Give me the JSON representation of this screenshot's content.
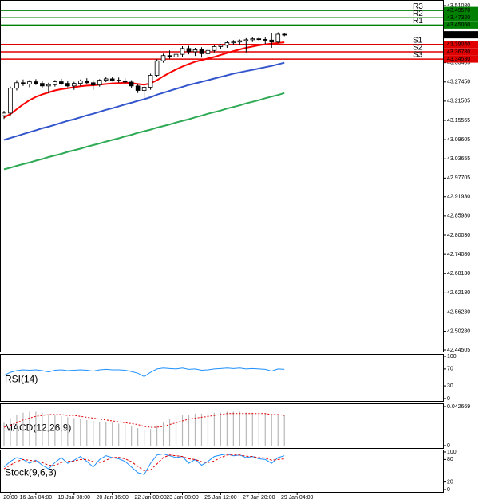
{
  "chart_data": [
    {
      "type": "candlestick",
      "open": [
        43.17,
        43.178,
        43.255,
        43.272,
        43.268,
        43.275,
        43.27,
        43.262,
        43.266,
        43.275,
        43.27,
        43.262,
        43.27,
        43.278,
        43.272,
        43.265,
        43.28,
        43.284,
        43.28,
        43.278,
        43.274,
        43.262,
        43.248,
        43.258,
        43.295,
        43.34,
        43.356,
        43.352,
        43.36,
        43.378,
        43.368,
        43.374,
        43.362,
        43.372,
        43.384,
        43.388,
        43.396,
        43.398,
        43.402,
        43.405,
        43.408,
        43.406,
        43.404,
        43.398,
        43.422
      ],
      "high": [
        43.185,
        43.26,
        43.28,
        43.282,
        43.28,
        43.283,
        43.278,
        43.272,
        43.28,
        43.284,
        43.278,
        43.275,
        43.282,
        43.286,
        43.28,
        43.283,
        43.29,
        43.29,
        43.288,
        43.286,
        43.28,
        43.268,
        43.262,
        43.3,
        43.345,
        43.362,
        43.372,
        43.366,
        43.385,
        43.386,
        43.38,
        43.382,
        43.378,
        43.388,
        43.392,
        43.4,
        43.404,
        43.406,
        43.41,
        43.412,
        43.414,
        43.412,
        43.425,
        43.428,
        43.426
      ],
      "low": [
        43.16,
        43.168,
        43.248,
        43.262,
        43.258,
        43.265,
        43.255,
        43.24,
        43.26,
        43.265,
        43.258,
        43.25,
        43.262,
        43.268,
        43.25,
        43.26,
        43.274,
        43.276,
        43.272,
        43.268,
        43.255,
        43.24,
        43.225,
        43.25,
        43.29,
        43.334,
        43.346,
        43.33,
        43.352,
        43.36,
        43.355,
        43.35,
        43.346,
        43.366,
        43.376,
        43.38,
        43.388,
        43.39,
        43.366,
        43.398,
        43.4,
        43.392,
        43.38,
        43.394,
        43.416
      ],
      "close": [
        43.178,
        43.255,
        43.272,
        43.268,
        43.275,
        43.27,
        43.262,
        43.266,
        43.275,
        43.27,
        43.262,
        43.27,
        43.278,
        43.272,
        43.265,
        43.28,
        43.284,
        43.28,
        43.278,
        43.274,
        43.262,
        43.248,
        43.258,
        43.295,
        43.34,
        43.356,
        43.352,
        43.36,
        43.378,
        43.368,
        43.374,
        43.362,
        43.372,
        43.384,
        43.388,
        43.396,
        43.398,
        43.402,
        43.405,
        43.408,
        43.406,
        43.404,
        43.398,
        43.422,
        43.42
      ],
      "bull_color": "#ffffff",
      "bear_color": "#000000",
      "series": [
        {
          "color": "#ff0000",
          "values": [
            43.165,
            43.175,
            43.19,
            43.205,
            43.218,
            43.228,
            43.236,
            43.242,
            43.248,
            43.252,
            43.255,
            43.258,
            43.261,
            43.263,
            43.264,
            43.266,
            43.268,
            43.27,
            43.271,
            43.272,
            43.271,
            43.268,
            43.266,
            43.27,
            43.28,
            43.292,
            43.303,
            43.313,
            43.322,
            43.33,
            43.337,
            43.342,
            43.347,
            43.352,
            43.358,
            43.364,
            43.37,
            43.375,
            43.38,
            43.384,
            43.388,
            43.391,
            43.393,
            43.395,
            43.397
          ]
        },
        {
          "color": "#3355cc",
          "values": [
            43.095,
            43.101,
            43.107,
            43.113,
            43.119,
            43.125,
            43.131,
            43.136,
            43.142,
            43.148,
            43.154,
            43.159,
            43.165,
            43.171,
            43.176,
            43.182,
            43.188,
            43.193,
            43.199,
            43.205,
            43.21,
            43.216,
            43.221,
            43.227,
            43.235,
            43.241,
            43.247,
            43.253,
            43.259,
            43.265,
            43.27,
            43.275,
            43.28,
            43.285,
            43.29,
            43.295,
            43.3,
            43.304,
            43.308,
            43.312,
            43.316,
            43.32,
            43.324,
            43.329,
            43.334
          ]
        },
        {
          "color": "#2eaa55",
          "values": [
            43.004,
            43.009,
            43.015,
            43.02,
            43.025,
            43.031,
            43.036,
            43.042,
            43.047,
            43.052,
            43.058,
            43.063,
            43.068,
            43.074,
            43.079,
            43.084,
            43.09,
            43.095,
            43.1,
            43.106,
            43.111,
            43.117,
            43.122,
            43.127,
            43.133,
            43.138,
            43.143,
            43.149,
            43.154,
            43.159,
            43.165,
            43.17,
            43.176,
            43.181,
            43.186,
            43.192,
            43.197,
            43.202,
            43.208,
            43.213,
            43.218,
            43.224,
            43.229,
            43.234,
            43.24
          ]
        }
      ],
      "levels": [
        {
          "name": "R3",
          "value": 43.4957,
          "label": "43.49570",
          "color": "#008000"
        },
        {
          "name": "R2",
          "value": 43.4732,
          "label": "43.47320",
          "color": "#008000"
        },
        {
          "name": "R1",
          "value": 43.4506,
          "label": "43.45060",
          "color": "#008000"
        },
        {
          "name": "S1",
          "value": 43.3904,
          "label": "43.39040",
          "color": "#e00000"
        },
        {
          "name": "S2",
          "value": 43.3678,
          "label": "43.36780",
          "color": "#e00000"
        },
        {
          "name": "S3",
          "value": 43.3453,
          "label": "43.34530",
          "color": "#e00000"
        }
      ],
      "last_price": 43.42046,
      "ylim": [
        42.4401,
        43.5256
      ],
      "yticks": [
        {
          "value": 43.5108,
          "label": "43.51080"
        },
        43.33405,
        {
          "value": 43.2745,
          "label": "43.27450"
        },
        43.21505,
        43.15555,
        43.09605,
        43.03655,
        42.97705,
        {
          "value": 42.9193,
          "label": "42.91930"
        },
        {
          "value": 42.8598,
          "label": "42.85980"
        },
        {
          "value": 42.8003,
          "label": "42.80030"
        },
        {
          "value": 42.7408,
          "label": "42.74080"
        },
        {
          "value": 42.6813,
          "label": "42.68130"
        },
        {
          "value": 42.6218,
          "label": "42.62180"
        },
        {
          "value": 42.5623,
          "label": "42.56230"
        },
        {
          "value": 42.5028,
          "label": "42.50280"
        },
        42.44505
      ],
      "xlim": [
        -0.5,
        68.9
      ],
      "xticks": [
        {
          "value": 1,
          "label": "20:00"
        },
        {
          "value": 5,
          "label": "16 Jan 04:00"
        },
        {
          "value": 11,
          "label": "19 Jan 08:00"
        },
        {
          "value": 17,
          "label": "20 Jan 16:00"
        },
        {
          "value": 23,
          "label": "22 Jan 00:00"
        },
        {
          "value": 28,
          "label": "23 Jan 08:00"
        },
        {
          "value": 34,
          "label": "26 Jan 12:00"
        },
        {
          "value": 40,
          "label": "27 Jan 20:00"
        },
        {
          "value": 46,
          "label": "29 Jan 04:00"
        }
      ]
    },
    {
      "type": "line",
      "title": "RSI(14)",
      "series": [
        {
          "color": "#1e90ff",
          "dash": false,
          "values": [
            55,
            62,
            66,
            68,
            67,
            68,
            66,
            63,
            67,
            68,
            66,
            67,
            68,
            67,
            65,
            68,
            69,
            68,
            68,
            67,
            64,
            60,
            52,
            62,
            70,
            72,
            71,
            70,
            72,
            69,
            70,
            67,
            68,
            70,
            71,
            72,
            71,
            72,
            70,
            71,
            70,
            69,
            65,
            70,
            69
          ]
        }
      ],
      "ylim": [
        0,
        100
      ],
      "yticks": [
        100,
        70,
        30,
        0
      ]
    },
    {
      "type": "macd",
      "title": "MACD(12,26,9)",
      "histogram": {
        "color": "#b8b8b8",
        "values": [
          0.025,
          0.03,
          0.034,
          0.036,
          0.037,
          0.037,
          0.036,
          0.034,
          0.033,
          0.032,
          0.031,
          0.03,
          0.029,
          0.028,
          0.027,
          0.026,
          0.026,
          0.025,
          0.024,
          0.023,
          0.021,
          0.019,
          0.017,
          0.018,
          0.022,
          0.026,
          0.029,
          0.031,
          0.033,
          0.034,
          0.035,
          0.035,
          0.035,
          0.036,
          0.036,
          0.037,
          0.037,
          0.037,
          0.036,
          0.036,
          0.035,
          0.035,
          0.034,
          0.034,
          0.033
        ]
      },
      "signal": {
        "color": "#e00000",
        "values": [
          0.02,
          0.022,
          0.025,
          0.028,
          0.03,
          0.032,
          0.033,
          0.034,
          0.034,
          0.034,
          0.033,
          0.033,
          0.032,
          0.031,
          0.03,
          0.029,
          0.028,
          0.027,
          0.026,
          0.025,
          0.024,
          0.023,
          0.021,
          0.02,
          0.02,
          0.021,
          0.023,
          0.025,
          0.027,
          0.029,
          0.03,
          0.031,
          0.032,
          0.033,
          0.034,
          0.035,
          0.035,
          0.035,
          0.035,
          0.035,
          0.035,
          0.035,
          0.034,
          0.034,
          0.033
        ]
      },
      "ylim": [
        0,
        0.042669
      ],
      "yticks": [
        0.042669,
        0
      ]
    },
    {
      "type": "line",
      "title": "Stock(9,6,3)",
      "series": [
        {
          "color": "#1e90ff",
          "dash": false,
          "values": [
            60,
            75,
            85,
            80,
            70,
            78,
            65,
            55,
            72,
            85,
            70,
            78,
            88,
            75,
            60,
            80,
            90,
            85,
            82,
            75,
            60,
            45,
            40,
            70,
            92,
            95,
            90,
            85,
            88,
            70,
            80,
            65,
            75,
            88,
            92,
            95,
            90,
            92,
            85,
            88,
            82,
            80,
            70,
            85,
            90
          ]
        },
        {
          "color": "#e00000",
          "dash": true,
          "values": [
            55,
            65,
            75,
            80,
            78,
            76,
            72,
            65,
            64,
            72,
            75,
            76,
            80,
            80,
            74,
            72,
            78,
            85,
            86,
            82,
            74,
            62,
            50,
            52,
            68,
            85,
            92,
            90,
            88,
            82,
            80,
            74,
            72,
            76,
            85,
            92,
            92,
            92,
            89,
            88,
            85,
            84,
            78,
            80,
            82
          ]
        }
      ],
      "ylim": [
        0,
        100
      ],
      "yticks": [
        100,
        80,
        20,
        0
      ]
    }
  ]
}
